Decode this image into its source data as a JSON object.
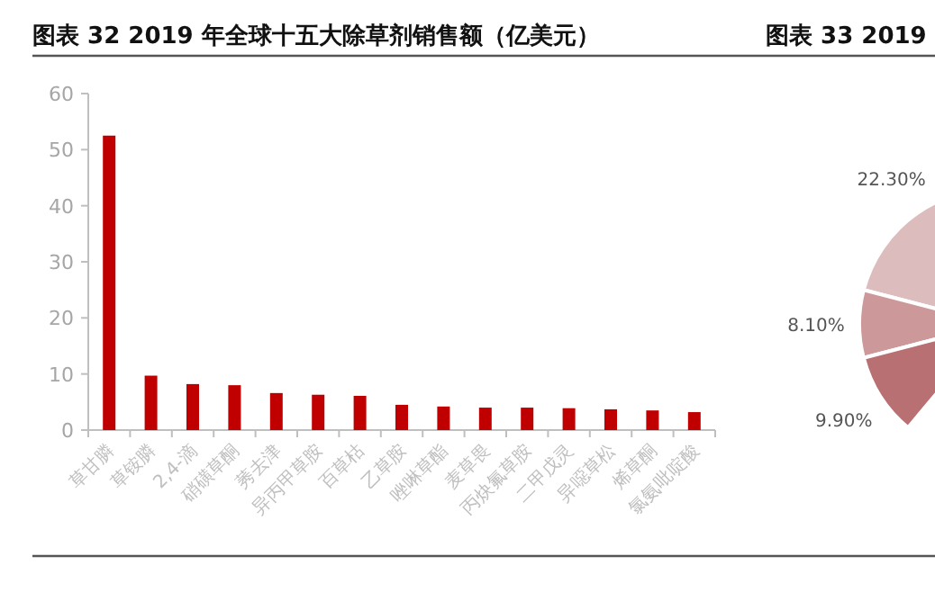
{
  "chart_data": [
    {
      "type": "bar",
      "title": "图表 32 2019 年全球十五大除草剂销售额（亿美元）",
      "categories": [
        "草甘膦",
        "草铵膦",
        "2,4-滴",
        "硝磺草酮",
        "莠去津",
        "异丙甲草胺",
        "百草枯",
        "乙草胺",
        "唑啉草酯",
        "麦草畏",
        "丙炔氟草胺",
        "二甲戊灵",
        "异噁草松",
        "烯草酮",
        "氯氨吡啶酸"
      ],
      "values": [
        52.5,
        9.7,
        8.2,
        8.0,
        6.6,
        6.3,
        6.1,
        4.5,
        4.2,
        4.0,
        4.0,
        3.9,
        3.7,
        3.5,
        3.2
      ],
      "color": "#c00000",
      "ylim": [
        0,
        60
      ],
      "yticks": [
        0,
        10,
        20,
        30,
        40,
        50,
        60
      ]
    },
    {
      "type": "other",
      "title": "图表 33 2019",
      "values": [
        22.3,
        8.1,
        9.9
      ],
      "value_labels": [
        "22.30%",
        "8.10%",
        "9.90%"
      ],
      "colors": [
        "#dcbcbd",
        "#cc9899",
        "#b87072"
      ]
    }
  ]
}
